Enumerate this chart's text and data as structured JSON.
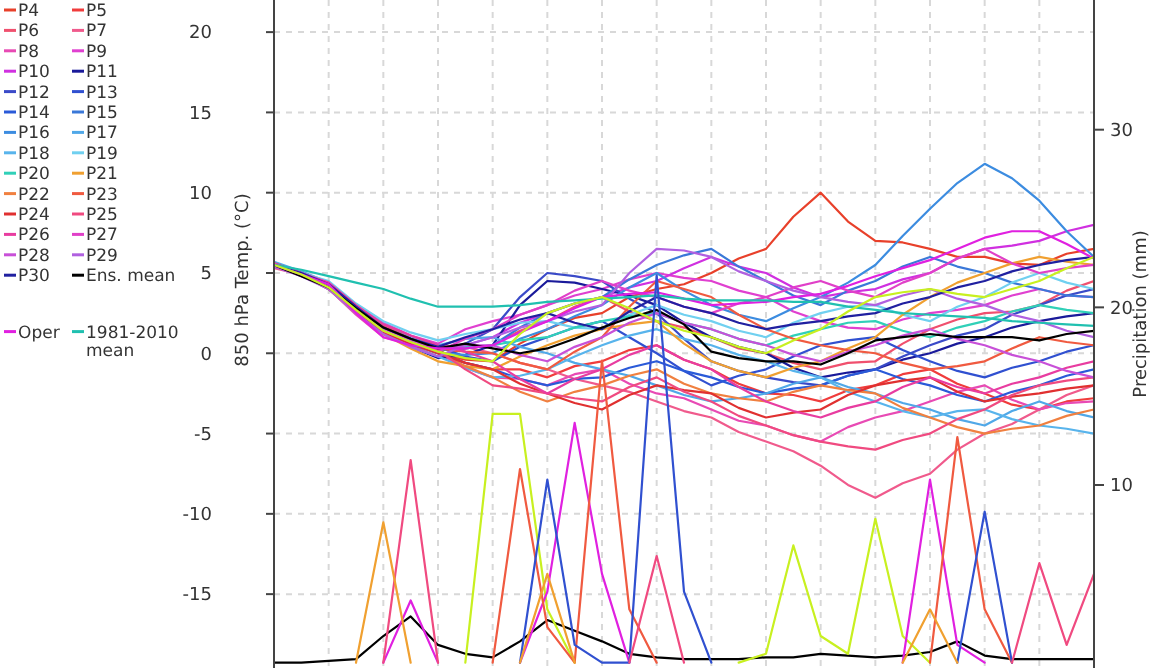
{
  "chart_data": {
    "type": "line",
    "ylabel": "850 hPa Temp. (°C)",
    "y2label": "Precipitation (mm)",
    "legend": "left",
    "grid": true,
    "categories": [
      null,
      null,
      null,
      null,
      null,
      null,
      null,
      null,
      null,
      null,
      null,
      null,
      null,
      null,
      null,
      null,
      null,
      null,
      null,
      null,
      null,
      null,
      null,
      null,
      null,
      null,
      null,
      null,
      null,
      null,
      null
    ],
    "ylim": [
      -19.6,
      22
    ],
    "yticks": [
      -15,
      -10,
      -5,
      0,
      5,
      10,
      15,
      20
    ],
    "y2lim": [
      -0.3,
      37.3
    ],
    "y2ticks": [
      10,
      20,
      30
    ],
    "series": [
      {
        "name": "P4",
        "color": "#e8402a",
        "values": [
          5.4,
          4.9,
          4.0,
          2.5,
          1.3,
          0.8,
          0.0,
          -0.4,
          -0.5,
          0.6,
          1.5,
          2.2,
          2.5,
          3.5,
          4.0,
          4.3,
          5.0,
          5.9,
          6.5,
          8.5,
          10.0,
          8.2,
          7.0,
          6.9,
          6.5,
          6.0,
          6.0,
          5.6,
          5.5,
          6.2,
          6.5
        ]
      },
      {
        "name": "P5",
        "color": "#f03c3c",
        "values": [
          5.5,
          5.0,
          4.2,
          2.8,
          1.6,
          0.8,
          0.2,
          -0.6,
          -1.0,
          -1.0,
          -1.5,
          -0.8,
          -0.5,
          0.2,
          0.5,
          -0.4,
          -1.0,
          -1.9,
          -2.5,
          -2.6,
          -3.0,
          -2.3,
          -2.0,
          -1.3,
          -1.0,
          -1.9,
          -2.5,
          -3.2,
          -3.5,
          -3.0,
          -2.8
        ]
      },
      {
        "name": "P6",
        "color": "#f0506e",
        "values": [
          5.6,
          5.0,
          4.1,
          2.6,
          1.4,
          0.5,
          -0.2,
          0.3,
          0.5,
          1.4,
          2.0,
          2.9,
          3.5,
          2.6,
          2.0,
          1.6,
          1.0,
          0.3,
          0.0,
          -0.6,
          -1.0,
          -0.6,
          -0.5,
          0.6,
          1.5,
          2.1,
          2.5,
          2.6,
          3.0,
          3.9,
          4.5
        ]
      },
      {
        "name": "P7",
        "color": "#f05a8c",
        "values": [
          5.3,
          4.9,
          4.3,
          2.9,
          1.8,
          1.0,
          0.5,
          0.4,
          0.0,
          -0.6,
          -1.0,
          -1.6,
          -2.0,
          -2.4,
          -3.0,
          -3.6,
          -4.0,
          -4.9,
          -5.5,
          -6.1,
          -7.0,
          -8.2,
          -9.0,
          -8.1,
          -7.5,
          -6.0,
          -5.0,
          -4.4,
          -3.5,
          -2.6,
          -2.0
        ]
      },
      {
        "name": "P8",
        "color": "#e84ab4",
        "values": [
          5.5,
          4.9,
          4.0,
          2.4,
          1.0,
          0.6,
          0.0,
          -0.9,
          -1.5,
          -1.6,
          -2.0,
          -1.3,
          -1.0,
          -1.9,
          -2.5,
          -2.8,
          -3.5,
          -4.2,
          -4.5,
          -5.1,
          -5.5,
          -4.6,
          -4.0,
          -3.6,
          -3.0,
          -2.4,
          -2.0,
          -2.9,
          -3.5,
          -3.1,
          -3.0
        ]
      },
      {
        "name": "P9",
        "color": "#e040d0",
        "values": [
          5.6,
          5.0,
          4.3,
          3.0,
          1.9,
          1.1,
          0.6,
          1.5,
          2.0,
          2.4,
          3.0,
          3.6,
          4.0,
          4.6,
          5.0,
          4.7,
          4.5,
          3.9,
          3.5,
          2.6,
          2.0,
          1.6,
          1.5,
          2.1,
          2.5,
          2.7,
          3.0,
          3.6,
          4.0,
          3.6,
          3.5
        ]
      },
      {
        "name": "P10",
        "color": "#d030e0",
        "values": [
          5.4,
          4.9,
          4.1,
          2.7,
          1.5,
          0.7,
          0.2,
          0.5,
          1.0,
          1.9,
          2.5,
          3.1,
          3.5,
          4.1,
          4.5,
          5.3,
          6.0,
          5.4,
          5.0,
          4.1,
          3.5,
          3.8,
          4.0,
          4.6,
          5.0,
          5.9,
          6.5,
          6.7,
          7.0,
          7.6,
          8.0
        ]
      },
      {
        "name": "P11",
        "color": "#1a1a9a",
        "values": [
          5.5,
          5.0,
          4.2,
          2.6,
          1.2,
          0.4,
          -0.3,
          -0.1,
          0.5,
          3.0,
          4.5,
          4.4,
          4.0,
          3.6,
          3.0,
          1.9,
          1.0,
          0.4,
          0.0,
          -0.9,
          -1.5,
          -1.2,
          -1.0,
          -0.4,
          0.0,
          0.6,
          1.0,
          1.6,
          2.0,
          2.3,
          2.5
        ]
      },
      {
        "name": "P12",
        "color": "#3a4ac8",
        "values": [
          5.5,
          4.9,
          4.0,
          2.6,
          1.4,
          0.6,
          0.1,
          0.6,
          1.5,
          3.5,
          5.0,
          4.8,
          4.5,
          3.4,
          2.5,
          0.9,
          -0.5,
          -1.1,
          -1.5,
          -1.8,
          -2.0,
          -1.4,
          -1.0,
          -0.2,
          0.5,
          1.1,
          1.5,
          2.4,
          3.0,
          3.6,
          4.0
        ]
      },
      {
        "name": "P13",
        "color": "#3050d0",
        "values": [
          5.6,
          5.0,
          4.2,
          2.9,
          1.7,
          0.9,
          0.4,
          -0.2,
          -0.5,
          0.4,
          1.0,
          1.6,
          2.0,
          1.0,
          0.0,
          -1.1,
          -2.0,
          -1.4,
          -1.0,
          -0.2,
          0.5,
          0.8,
          1.0,
          0.2,
          -0.5,
          -1.1,
          -1.5,
          -0.9,
          -0.5,
          0.1,
          0.5
        ]
      },
      {
        "name": "P14",
        "color": "#2a5ad8",
        "values": [
          5.4,
          5.0,
          4.3,
          2.8,
          1.5,
          0.6,
          0.0,
          -0.6,
          -1.0,
          -1.6,
          -2.0,
          -1.6,
          -1.5,
          -0.9,
          -0.5,
          -1.1,
          -1.5,
          -2.1,
          -2.5,
          -2.2,
          -2.0,
          -1.4,
          -1.0,
          -1.6,
          -2.0,
          -2.6,
          -3.0,
          -2.4,
          -2.0,
          -1.4,
          -1.0
        ]
      },
      {
        "name": "P15",
        "color": "#3a78d8",
        "values": [
          5.5,
          4.9,
          4.1,
          2.8,
          1.6,
          0.8,
          0.3,
          0.3,
          0.5,
          1.6,
          2.5,
          3.1,
          3.5,
          4.6,
          5.5,
          6.1,
          6.5,
          5.4,
          4.5,
          3.6,
          3.0,
          3.9,
          4.5,
          5.4,
          6.0,
          5.4,
          5.0,
          4.4,
          4.0,
          3.6,
          3.5
        ]
      },
      {
        "name": "P16",
        "color": "#3c8ce0",
        "values": [
          5.5,
          5.0,
          4.2,
          2.7,
          1.4,
          0.6,
          0.0,
          -0.1,
          0.0,
          0.9,
          1.5,
          2.3,
          3.0,
          4.1,
          5.0,
          3.9,
          3.0,
          2.4,
          2.0,
          2.8,
          3.5,
          4.4,
          5.5,
          7.3,
          9.0,
          10.6,
          11.8,
          10.9,
          9.5,
          7.6,
          6.0
        ]
      },
      {
        "name": "P17",
        "color": "#50a8e8",
        "values": [
          5.7,
          5.1,
          4.4,
          3.0,
          1.8,
          1.0,
          0.5,
          0.9,
          1.0,
          0.4,
          0.0,
          -0.6,
          -1.0,
          -1.4,
          -2.0,
          -2.6,
          -3.0,
          -2.8,
          -2.5,
          -1.9,
          -1.5,
          -2.1,
          -2.5,
          -3.1,
          -3.5,
          -4.1,
          -4.5,
          -3.6,
          -3.0,
          -3.6,
          -4.0
        ]
      },
      {
        "name": "P18",
        "color": "#58b4ec",
        "values": [
          5.5,
          4.9,
          4.0,
          2.5,
          1.3,
          0.4,
          -0.2,
          -0.9,
          -1.5,
          -1.4,
          -1.0,
          -0.2,
          0.5,
          1.1,
          1.5,
          0.9,
          0.5,
          -0.1,
          -0.5,
          -1.1,
          -1.5,
          -2.4,
          -3.0,
          -3.6,
          -4.0,
          -3.6,
          -3.5,
          -4.1,
          -4.5,
          -4.7,
          -5.0
        ]
      },
      {
        "name": "P19",
        "color": "#70d0f0",
        "values": [
          5.4,
          5.0,
          4.5,
          3.1,
          2.0,
          1.3,
          0.8,
          1.2,
          1.5,
          1.9,
          2.0,
          1.6,
          1.5,
          2.4,
          3.0,
          2.4,
          2.0,
          1.4,
          1.0,
          1.9,
          2.5,
          2.9,
          3.0,
          2.4,
          2.0,
          2.9,
          3.5,
          4.4,
          5.0,
          4.4,
          4.0
        ]
      },
      {
        "name": "P20",
        "color": "#30d0b8",
        "values": [
          5.5,
          5.0,
          4.2,
          2.8,
          1.5,
          0.8,
          0.2,
          0.4,
          0.5,
          0.8,
          1.0,
          1.6,
          2.0,
          2.3,
          2.5,
          1.9,
          1.5,
          0.9,
          0.5,
          1.1,
          1.5,
          1.9,
          2.0,
          1.4,
          1.0,
          1.6,
          2.0,
          2.6,
          3.0,
          2.7,
          2.5
        ]
      },
      {
        "name": "P21",
        "color": "#f0a030",
        "values": [
          5.6,
          4.9,
          4.0,
          2.5,
          1.2,
          0.3,
          -0.5,
          -0.8,
          -1.0,
          -0.2,
          0.5,
          1.1,
          1.5,
          1.8,
          2.0,
          0.6,
          -0.5,
          -1.1,
          -1.5,
          -0.9,
          -0.5,
          0.3,
          1.0,
          2.4,
          3.5,
          4.4,
          5.0,
          5.6,
          6.0,
          5.7,
          5.5
        ]
      },
      {
        "name": "P22",
        "color": "#f08040",
        "values": [
          5.5,
          4.9,
          4.1,
          2.7,
          1.5,
          0.7,
          0.1,
          -0.8,
          -1.5,
          -2.4,
          -3.0,
          -2.4,
          -2.0,
          -1.4,
          -1.0,
          -1.9,
          -2.5,
          -2.8,
          -3.0,
          -2.4,
          -2.0,
          -2.3,
          -2.5,
          -3.4,
          -4.0,
          -4.6,
          -5.0,
          -4.7,
          -4.5,
          -3.9,
          -3.5
        ]
      },
      {
        "name": "P23",
        "color": "#f05a40",
        "values": [
          5.4,
          5.0,
          4.3,
          2.9,
          1.7,
          0.9,
          0.3,
          0.1,
          0.0,
          -0.6,
          -1.0,
          0.1,
          1.0,
          2.9,
          4.5,
          4.0,
          3.5,
          2.4,
          1.5,
          0.9,
          0.5,
          0.2,
          0.0,
          -0.6,
          -1.0,
          -0.8,
          -0.5,
          0.3,
          1.0,
          0.7,
          0.5
        ]
      },
      {
        "name": "P24",
        "color": "#e03030",
        "values": [
          5.6,
          5.0,
          4.2,
          2.6,
          1.3,
          0.6,
          0.0,
          -0.6,
          -1.0,
          -1.9,
          -2.5,
          -3.1,
          -3.5,
          -2.6,
          -2.0,
          -2.3,
          -2.5,
          -3.4,
          -4.0,
          -3.7,
          -3.5,
          -2.6,
          -2.0,
          -1.7,
          -1.5,
          -2.4,
          -3.0,
          -2.7,
          -2.5,
          -2.2,
          -2.0
        ]
      },
      {
        "name": "P25",
        "color": "#f04a80",
        "values": [
          5.5,
          4.9,
          4.0,
          2.7,
          1.6,
          0.8,
          0.2,
          -1.0,
          -2.0,
          -2.2,
          -2.5,
          -2.8,
          -3.0,
          -2.1,
          -1.5,
          -2.4,
          -3.0,
          -3.9,
          -4.5,
          -5.1,
          -5.5,
          -5.8,
          -6.0,
          -5.4,
          -5.0,
          -4.1,
          -3.5,
          -2.6,
          -2.0,
          -1.7,
          -1.5
        ]
      },
      {
        "name": "P26",
        "color": "#e83ca0",
        "values": [
          5.5,
          5.0,
          4.4,
          3.0,
          1.8,
          1.1,
          0.5,
          0.1,
          -0.5,
          -1.6,
          -2.5,
          -1.6,
          -1.0,
          -0.1,
          0.5,
          -0.4,
          -1.0,
          -2.1,
          -3.0,
          -3.6,
          -4.0,
          -3.4,
          -3.0,
          -2.1,
          -1.5,
          -2.1,
          -2.5,
          -1.9,
          -1.5,
          -0.9,
          -0.5
        ]
      },
      {
        "name": "P27",
        "color": "#e040c8",
        "values": [
          5.6,
          4.9,
          4.1,
          2.7,
          1.4,
          0.7,
          0.1,
          0.9,
          1.5,
          2.4,
          3.0,
          3.9,
          4.5,
          3.9,
          3.5,
          2.9,
          2.5,
          3.1,
          3.5,
          4.1,
          4.5,
          3.9,
          3.5,
          4.4,
          5.0,
          5.9,
          6.5,
          5.6,
          5.0,
          5.3,
          5.5
        ]
      },
      {
        "name": "P28",
        "color": "#c850d8",
        "values": [
          5.5,
          5.0,
          4.2,
          2.8,
          1.5,
          0.8,
          0.3,
          0.5,
          0.5,
          -0.1,
          -0.5,
          0.4,
          1.0,
          1.9,
          2.5,
          1.9,
          1.5,
          0.9,
          0.5,
          -0.1,
          -0.5,
          0.1,
          0.5,
          1.1,
          1.5,
          0.9,
          0.5,
          -0.1,
          -0.5,
          -1.1,
          -1.5
        ]
      },
      {
        "name": "P29",
        "color": "#b060e0",
        "values": [
          5.4,
          4.8,
          4.0,
          2.5,
          1.2,
          0.4,
          -0.2,
          0.5,
          1.0,
          1.6,
          2.0,
          2.6,
          3.0,
          5.0,
          6.5,
          6.4,
          6.0,
          5.1,
          4.5,
          3.9,
          3.5,
          3.2,
          3.0,
          3.6,
          4.0,
          3.4,
          3.0,
          2.4,
          2.0,
          1.4,
          1.0
        ]
      },
      {
        "name": "P30",
        "color": "#2020a0",
        "values": [
          5.5,
          5.0,
          4.3,
          2.9,
          1.6,
          0.9,
          0.4,
          1.0,
          1.5,
          2.1,
          2.5,
          1.9,
          1.5,
          2.6,
          3.5,
          2.9,
          2.5,
          1.9,
          1.5,
          1.8,
          2.0,
          2.3,
          2.5,
          3.1,
          3.5,
          4.1,
          4.5,
          5.1,
          5.5,
          5.8,
          6.0
        ]
      },
      {
        "name": "Ens. mean",
        "color": "#000000",
        "values": [
          5.5,
          4.8,
          4.1,
          2.8,
          1.6,
          0.9,
          0.3,
          0.6,
          0.3,
          0.0,
          0.3,
          0.9,
          1.6,
          2.2,
          2.7,
          1.8,
          0.1,
          -0.3,
          -0.5,
          -0.5,
          -0.7,
          0.0,
          0.8,
          1.0,
          1.2,
          1.0,
          1.0,
          1.0,
          0.8,
          1.2,
          1.4
        ]
      },
      {
        "name": "Oper",
        "color": "#e020e0",
        "values": [
          5.5,
          4.9,
          4.3,
          2.5,
          1.0,
          0.5,
          0.3,
          0.3,
          0.5,
          1.3,
          2.0,
          2.8,
          3.5,
          3.7,
          3.8,
          3.4,
          3.0,
          3.1,
          3.2,
          3.5,
          3.7,
          4.2,
          4.8,
          5.3,
          5.8,
          6.5,
          7.2,
          7.6,
          7.6,
          6.8,
          5.9
        ]
      },
      {
        "name": "1981-2010 mean",
        "color": "#20c0b0",
        "values": [
          5.5,
          5.2,
          4.8,
          4.4,
          4.0,
          3.4,
          2.9,
          2.9,
          2.9,
          3.0,
          3.2,
          3.3,
          3.4,
          3.5,
          3.6,
          3.4,
          3.3,
          3.3,
          3.3,
          3.2,
          3.2,
          2.9,
          2.7,
          2.5,
          2.4,
          2.3,
          2.2,
          2.0,
          1.9,
          1.8,
          1.7
        ]
      },
      {
        "color": "#c8f020",
        "values": [
          5.5,
          4.9,
          4.1,
          2.7,
          1.4,
          0.7,
          0.1,
          -0.3,
          -0.5,
          1.2,
          2.5,
          3.1,
          3.5,
          2.8,
          2.0,
          1.4,
          1.0,
          0.4,
          0.0,
          0.8,
          1.5,
          2.6,
          3.5,
          3.8,
          4.0,
          3.7,
          3.5,
          4.0,
          4.5,
          5.3,
          6.0
        ]
      },
      {
        "color": "#000000",
        "axis": "y2",
        "values": [
          0,
          0,
          0.1,
          0.2,
          1.5,
          2.6,
          1.0,
          0.5,
          0.3,
          1.2,
          2.4,
          1.8,
          1.2,
          0.5,
          0.3,
          0.2,
          0.2,
          0.2,
          0.3,
          0.3,
          0.5,
          0.4,
          0.3,
          0.4,
          0.6,
          1.2,
          0.4,
          0.2,
          0.2,
          0.2,
          0.2
        ]
      },
      {
        "color": "#c8f020",
        "axis": "y2",
        "values": [
          null,
          null,
          null,
          null,
          null,
          null,
          null,
          0,
          14,
          14,
          3,
          0,
          null,
          null,
          null,
          null,
          null,
          0,
          0.5,
          6.6,
          1.5,
          0.5,
          8.1,
          1.5,
          0,
          null,
          null,
          null,
          null,
          null,
          null
        ]
      },
      {
        "color": "#e020e0",
        "axis": "y2",
        "values": [
          null,
          null,
          null,
          null,
          0,
          3.5,
          0,
          null,
          null,
          0,
          4,
          13.5,
          5,
          0,
          null,
          null,
          null,
          null,
          null,
          null,
          null,
          null,
          null,
          0,
          10.3,
          1.0,
          0,
          null,
          null,
          null,
          null
        ]
      },
      {
        "color": "#f05a40",
        "axis": "y2",
        "values": [
          null,
          null,
          null,
          null,
          null,
          null,
          null,
          null,
          0,
          10.9,
          2,
          0,
          17,
          3,
          0,
          null,
          null,
          null,
          null,
          null,
          null,
          null,
          null,
          null,
          0,
          12.7,
          3,
          0,
          null,
          null,
          null
        ]
      },
      {
        "color": "#3050d0",
        "axis": "y2",
        "values": [
          null,
          null,
          null,
          null,
          null,
          null,
          null,
          null,
          null,
          0,
          10.3,
          1,
          0,
          0,
          21.8,
          4,
          0,
          null,
          null,
          null,
          null,
          null,
          null,
          null,
          null,
          0,
          8.5,
          0,
          null,
          null,
          null
        ]
      },
      {
        "color": "#f04a80",
        "axis": "y2",
        "values": [
          null,
          null,
          null,
          null,
          0,
          11.4,
          0,
          null,
          null,
          null,
          null,
          null,
          null,
          0,
          6,
          0,
          null,
          null,
          null,
          null,
          null,
          null,
          null,
          null,
          null,
          null,
          null,
          0,
          5.6,
          1,
          5
        ]
      },
      {
        "color": "#f0a030",
        "axis": "y2",
        "values": [
          null,
          null,
          null,
          0,
          7.9,
          0,
          null,
          null,
          null,
          0,
          5,
          0,
          null,
          null,
          null,
          null,
          null,
          null,
          null,
          null,
          null,
          null,
          null,
          0,
          3,
          0,
          null,
          null,
          null,
          null,
          null
        ]
      }
    ]
  }
}
